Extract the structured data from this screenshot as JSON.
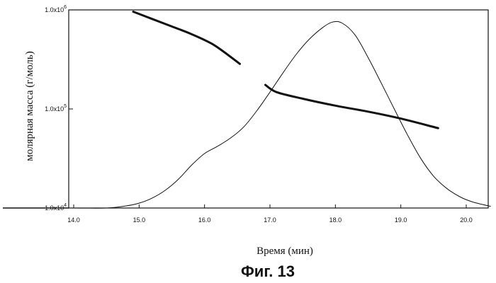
{
  "chart_data": {
    "type": "line",
    "caption": "Фиг. 13",
    "xlabel": "Время (мин)",
    "ylabel": "молярная масса (г/моль)",
    "xlim": [
      14.0,
      20.0
    ],
    "ylim": [
      10000,
      1000000
    ],
    "y_scale": "log",
    "grid": false,
    "x_tick_labels": [
      "14.0",
      "15.0",
      "16.0",
      "17.0",
      "18.0",
      "19.0",
      "20.0"
    ],
    "x_tick_values": [
      14.0,
      15.0,
      16.0,
      17.0,
      18.0,
      19.0,
      20.0
    ],
    "y_tick_labels": [
      "1.0x10",
      "1.0x10",
      "1.0x10"
    ],
    "y_tick_exponents": [
      "4",
      "5",
      "6"
    ],
    "y_tick_values": [
      10000,
      100000,
      1000000
    ],
    "series": [
      {
        "kind": "molar mass, segment 1",
        "stroke_width": 3,
        "x": [
          14.91,
          15.2,
          15.5,
          15.8,
          16.1,
          16.3,
          16.54
        ],
        "y": [
          960000,
          810000,
          680000,
          570000,
          460000,
          375000,
          285000
        ]
      },
      {
        "kind": "molar mass, segment 2",
        "stroke_width": 3,
        "x": [
          16.93,
          17.1,
          17.5,
          18.0,
          18.5,
          19.0,
          19.57
        ],
        "y": [
          175000,
          148000,
          127000,
          108000,
          94000,
          80000,
          64000
        ]
      },
      {
        "kind": "signal",
        "stroke_width": 1,
        "x": [
          13.85,
          14.0,
          14.5,
          14.8,
          15.0,
          15.2,
          15.4,
          15.6,
          15.8,
          16.0,
          16.2,
          16.4,
          16.6,
          16.8,
          17.0,
          17.2,
          17.4,
          17.6,
          17.8,
          17.95,
          18.1,
          18.3,
          18.5,
          18.7,
          18.9,
          19.1,
          19.3,
          19.5,
          19.7,
          19.9,
          20.1,
          20.37
        ],
        "y": [
          10000,
          10000,
          10000,
          10500,
          11200,
          12600,
          15100,
          19500,
          27000,
          35500,
          42000,
          51000,
          66000,
          96000,
          148000,
          232000,
          355000,
          505000,
          660000,
          752000,
          738000,
          560000,
          330000,
          183000,
          100000,
          55000,
          32000,
          21000,
          15800,
          13000,
          11500,
          10400
        ]
      }
    ]
  }
}
